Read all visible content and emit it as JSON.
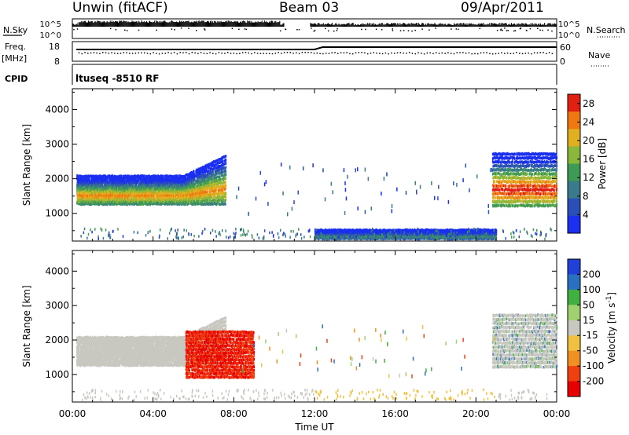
{
  "header": {
    "station": "Unwin (fitACF)",
    "beam": "Beam 03",
    "date": "09/Apr/2011"
  },
  "summary": {
    "nsky_label": "N.Sky",
    "nsky_ticks": [
      "10^5",
      "10^0"
    ],
    "nsearch_label": "N.Search",
    "nsearch_ticks": [
      "10^5",
      "10^0"
    ],
    "freq_label": "Freq.",
    "freq_unit": "[MHz]",
    "freq_ticks": [
      "18",
      "8"
    ],
    "nave_label": "Nave",
    "nave_ticks": [
      "60",
      "0"
    ],
    "cpid_label": "CPID",
    "cpid_value": "ltuseq -8510 RF"
  },
  "chart_data": [
    {
      "type": "heatmap",
      "name": "power",
      "ylabel": "Slant Range [km]",
      "yticks": [
        1000,
        2000,
        3000,
        4000
      ],
      "ylim": [
        200,
        4600
      ],
      "xlim": [
        0,
        24
      ],
      "colorbar": {
        "label": "Power [dB]",
        "ticks": [
          4,
          8,
          12,
          16,
          20,
          24,
          28
        ],
        "range": [
          0,
          30
        ],
        "colors": [
          "#1a2ff0",
          "#2a4fb8",
          "#3a7a8a",
          "#3f9a55",
          "#8ab83a",
          "#e0b020",
          "#f07810",
          "#e02010"
        ]
      },
      "features": [
        {
          "t_start": 0.2,
          "t_end": 7.6,
          "range_low": 1250,
          "range_high": 2100,
          "peak_db": 22
        },
        {
          "t_start": 20.8,
          "t_end": 24.0,
          "range_low": 1200,
          "range_high": 2800,
          "peak_db": 28
        },
        {
          "t_start": 12.0,
          "t_end": 21.0,
          "range_low": 250,
          "range_high": 500,
          "peak_db": 10
        }
      ]
    },
    {
      "type": "heatmap",
      "name": "velocity",
      "ylabel": "Slant Range [km]",
      "yticks": [
        1000,
        2000,
        3000,
        4000
      ],
      "ylim": [
        200,
        4600
      ],
      "xlim": [
        0,
        24
      ],
      "xticks": [
        "00:00",
        "04:00",
        "08:00",
        "12:00",
        "16:00",
        "20:00",
        "00:00"
      ],
      "xlabel": "Time UT",
      "colorbar": {
        "label_text": "Velocity [m s",
        "label_sup": "-1",
        "label_close": "]",
        "ticks": [
          "200",
          "100",
          "50",
          "15",
          "-15",
          "-50",
          "-100",
          "-200"
        ],
        "colors": [
          "#2040d8",
          "#2a70c0",
          "#40b040",
          "#a0d070",
          "#c8c8c0",
          "#f0c040",
          "#f09020",
          "#f04010",
          "#e80000"
        ]
      },
      "features": [
        {
          "t_start": 0.2,
          "t_end": 7.6,
          "range_low": 1250,
          "range_high": 2100,
          "velocity": 0
        },
        {
          "t_start": 5.6,
          "t_end": 9.0,
          "range_low": 900,
          "range_high": 2300,
          "velocity": -200
        },
        {
          "t_start": 20.8,
          "t_end": 24.0,
          "range_low": 1200,
          "range_high": 2800,
          "velocity": 0
        }
      ]
    }
  ]
}
